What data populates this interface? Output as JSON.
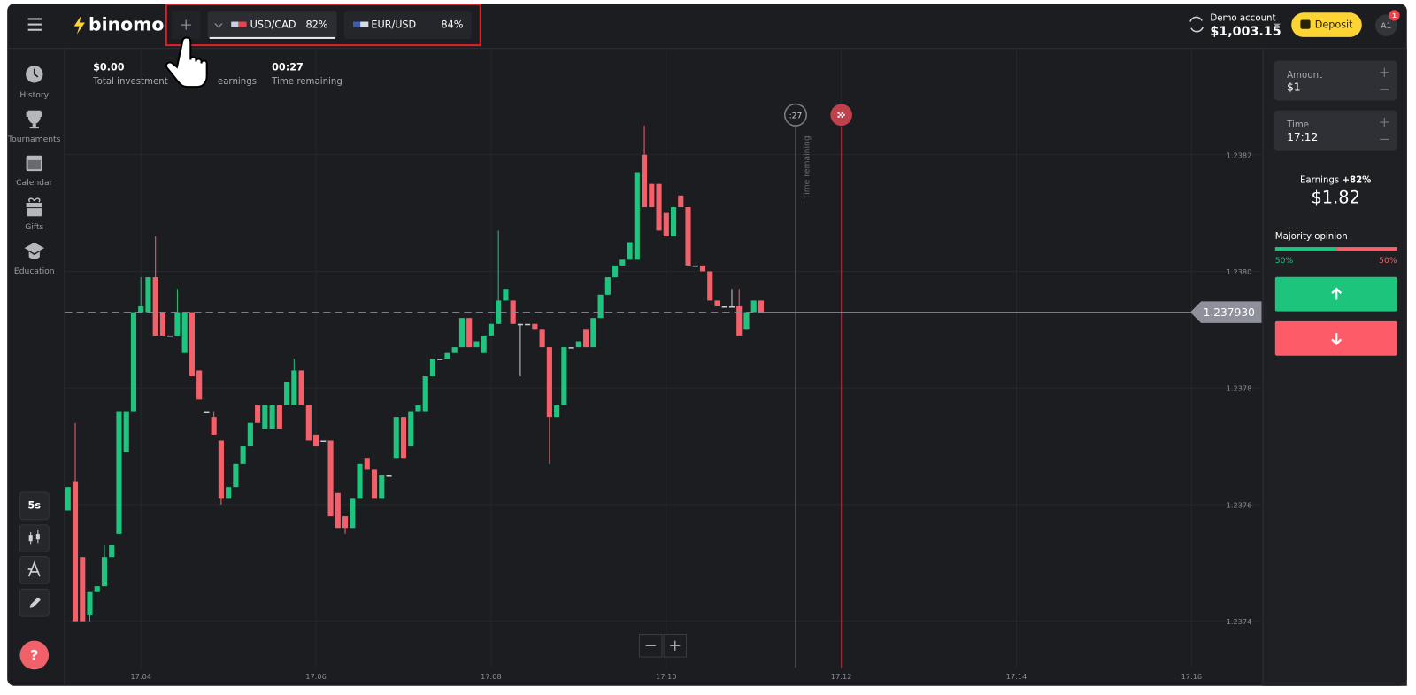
{
  "header": {
    "logo": "binomo",
    "tabs": [
      {
        "pair": "USD/CAD",
        "payout": "82%"
      },
      {
        "pair": "EUR/USD",
        "payout": "84%"
      }
    ],
    "account": {
      "label": "Demo account",
      "balance": "$1,003.15"
    },
    "deposit": "Deposit",
    "avatar": "A1",
    "notifications": "1"
  },
  "sidebar": {
    "nav": [
      "History",
      "Tournaments",
      "Calendar",
      "Gifts",
      "Education"
    ],
    "timeframe": "5s",
    "help": "?"
  },
  "stats": [
    {
      "value": "$0.00",
      "label": "Total investment"
    },
    {
      "label": "earnings"
    },
    {
      "value": "00:27",
      "label": "Time remaining"
    }
  ],
  "panel": {
    "amount": {
      "label": "Amount",
      "value": "$1"
    },
    "time": {
      "label": "Time",
      "value": "17:12"
    },
    "earnings": {
      "label": "Earnings",
      "rate": "+82%",
      "value": "$1.82"
    },
    "majority": {
      "label": "Majority opinion",
      "up": "50%",
      "down": "50%"
    }
  },
  "chart_data": {
    "type": "candlestick",
    "x": [
      190,
      195,
      200,
      205,
      210,
      215,
      220,
      225,
      230,
      235,
      240,
      245,
      250,
      255,
      260,
      265,
      270,
      275,
      280,
      285,
      290,
      295,
      300,
      305,
      310,
      315,
      320,
      325,
      330,
      335,
      340,
      345,
      350,
      355,
      360,
      365,
      370,
      375,
      380,
      385,
      390,
      395,
      400,
      405,
      410,
      415,
      420,
      425,
      430,
      435,
      440,
      445,
      450,
      455,
      460,
      465,
      470,
      475,
      480,
      485,
      490,
      495,
      500,
      505,
      510,
      515,
      520,
      525,
      530,
      535,
      540,
      545,
      550,
      555,
      560,
      565,
      570,
      575,
      580,
      585,
      590,
      595,
      600,
      605,
      610,
      615,
      620,
      625,
      630,
      635,
      640,
      645,
      650,
      655,
      660,
      665
    ],
    "open": [
      1.23759,
      1.23764,
      1.23751,
      1.23741,
      1.23745,
      1.23746,
      1.23751,
      1.23755,
      1.23769,
      1.23776,
      1.23793,
      1.23793,
      1.23799,
      1.23793,
      1.23789,
      1.23789,
      1.23786,
      1.23793,
      1.23783,
      1.23776,
      1.23775,
      1.23771,
      1.23761,
      1.23763,
      1.23767,
      1.2377,
      1.23777,
      1.23773,
      1.23773,
      1.23777,
      1.23777,
      1.23777,
      1.23783,
      1.23777,
      1.23772,
      1.23771,
      1.23771,
      1.23762,
      1.23758,
      1.23756,
      1.23761,
      1.23768,
      1.23766,
      1.23761,
      1.23765,
      1.23768,
      1.23775,
      1.2377,
      1.23776,
      1.23776,
      1.23782,
      1.23785,
      1.23785,
      1.23786,
      1.23787,
      1.23792,
      1.23787,
      1.23786,
      1.23789,
      1.23791,
      1.23795,
      1.23795,
      1.23791,
      1.23791,
      1.23791,
      1.2379,
      1.23787,
      1.23775,
      1.23777,
      1.23787,
      1.23787,
      1.2379,
      1.23787,
      1.23792,
      1.23796,
      1.23799,
      1.23801,
      1.23802,
      1.23802,
      1.2382,
      1.23815,
      1.23815,
      1.2381,
      1.23806,
      1.23813,
      1.23811,
      1.23801,
      1.23801,
      1.238,
      1.23795,
      1.23794,
      1.23794,
      1.23794,
      1.2379,
      1.23793,
      1.23795
    ],
    "high": [
      1.23763,
      1.23774,
      1.23751,
      1.23745,
      1.23746,
      1.23753,
      1.23753,
      1.23776,
      1.23776,
      1.23793,
      1.23799,
      1.23799,
      1.23806,
      1.23793,
      1.23789,
      1.23797,
      1.23793,
      1.23793,
      1.23783,
      1.23776,
      1.23776,
      1.23771,
      1.23763,
      1.23767,
      1.2377,
      1.23774,
      1.23777,
      1.23777,
      1.23777,
      1.23777,
      1.23781,
      1.23785,
      1.23783,
      1.23777,
      1.23772,
      1.23771,
      1.23771,
      1.23762,
      1.23758,
      1.23761,
      1.23767,
      1.23768,
      1.23766,
      1.23765,
      1.23765,
      1.23775,
      1.23775,
      1.23776,
      1.23777,
      1.23782,
      1.23785,
      1.23785,
      1.23786,
      1.23787,
      1.23792,
      1.23792,
      1.23788,
      1.23789,
      1.23791,
      1.23807,
      1.23797,
      1.23795,
      1.23791,
      1.23791,
      1.23791,
      1.2379,
      1.23787,
      1.23777,
      1.23787,
      1.23787,
      1.23788,
      1.2379,
      1.23792,
      1.23796,
      1.23799,
      1.23801,
      1.23802,
      1.23805,
      1.23817,
      1.23825,
      1.23815,
      1.23815,
      1.2381,
      1.23811,
      1.23813,
      1.23811,
      1.23801,
      1.23801,
      1.238,
      1.23795,
      1.23794,
      1.23797,
      1.23797,
      1.23793,
      1.23795,
      1.23795
    ],
    "low": [
      1.23759,
      1.2374,
      1.2374,
      1.2374,
      1.23745,
      1.23746,
      1.23751,
      1.23755,
      1.23769,
      1.23776,
      1.23793,
      1.23793,
      1.23789,
      1.23789,
      1.23789,
      1.23789,
      1.23786,
      1.23782,
      1.23778,
      1.23776,
      1.23772,
      1.2376,
      1.23761,
      1.23763,
      1.23767,
      1.2377,
      1.23774,
      1.23773,
      1.23773,
      1.23773,
      1.23777,
      1.23777,
      1.23777,
      1.23771,
      1.2377,
      1.23771,
      1.23758,
      1.23756,
      1.23755,
      1.23756,
      1.23761,
      1.23766,
      1.23761,
      1.23761,
      1.23765,
      1.23768,
      1.23768,
      1.2377,
      1.23776,
      1.23776,
      1.23782,
      1.23785,
      1.23785,
      1.23786,
      1.23787,
      1.23787,
      1.23787,
      1.23786,
      1.23789,
      1.23791,
      1.23795,
      1.23791,
      1.23782,
      1.23791,
      1.2379,
      1.23787,
      1.23767,
      1.23775,
      1.23777,
      1.23787,
      1.23787,
      1.23787,
      1.23787,
      1.23792,
      1.23796,
      1.23799,
      1.23801,
      1.23802,
      1.23802,
      1.23811,
      1.23811,
      1.23807,
      1.23806,
      1.23806,
      1.23811,
      1.23801,
      1.23801,
      1.238,
      1.23795,
      1.23794,
      1.23794,
      1.23794,
      1.23789,
      1.2379,
      1.23793,
      1.23793
    ],
    "close": [
      1.23763,
      1.2374,
      1.2374,
      1.23745,
      1.23746,
      1.23751,
      1.23753,
      1.23776,
      1.23776,
      1.23793,
      1.23794,
      1.23799,
      1.23789,
      1.23789,
      1.23789,
      1.23793,
      1.23793,
      1.23782,
      1.23778,
      1.23776,
      1.23772,
      1.23761,
      1.23763,
      1.23767,
      1.2377,
      1.23774,
      1.23774,
      1.23777,
      1.23777,
      1.23773,
      1.23781,
      1.23783,
      1.23777,
      1.23771,
      1.2377,
      1.23771,
      1.23758,
      1.23756,
      1.23756,
      1.23761,
      1.23767,
      1.23766,
      1.23761,
      1.23765,
      1.23765,
      1.23775,
      1.23768,
      1.23776,
      1.23777,
      1.23782,
      1.23785,
      1.23785,
      1.23786,
      1.23787,
      1.23792,
      1.23787,
      1.23788,
      1.23789,
      1.23791,
      1.23795,
      1.23797,
      1.23791,
      1.23791,
      1.23791,
      1.2379,
      1.23787,
      1.23775,
      1.23777,
      1.23787,
      1.23787,
      1.23788,
      1.23787,
      1.23792,
      1.23796,
      1.23799,
      1.23801,
      1.23802,
      1.23805,
      1.23817,
      1.23811,
      1.23811,
      1.23807,
      1.23806,
      1.23811,
      1.23811,
      1.23801,
      1.23801,
      1.238,
      1.23795,
      1.23794,
      1.23794,
      1.23794,
      1.23789,
      1.23793,
      1.23795,
      1.23793
    ],
    "up_color": "#1fc47e",
    "down_color": "#f3606a",
    "xlim": [
      188,
      1008
    ],
    "ylim": [
      1.23732,
      1.23838
    ],
    "xticks": [
      {
        "value": 240,
        "label": "17:04"
      },
      {
        "value": 360,
        "label": "17:06"
      },
      {
        "value": 480,
        "label": "17:08"
      },
      {
        "value": 600,
        "label": "17:10"
      },
      {
        "value": 720,
        "label": "17:12"
      },
      {
        "value": 840,
        "label": "17:14"
      },
      {
        "value": 960,
        "label": "17:16"
      }
    ],
    "yticks": [
      1.2382,
      {
        "value": 1.238,
        "label": "1.2380"
      },
      1.2378,
      1.2376,
      1.2374
    ],
    "grid": true,
    "current_price": {
      "value": 1.23793,
      "label": "1.237930"
    },
    "countdown": ":27",
    "countdown_label": "Time remaining"
  }
}
